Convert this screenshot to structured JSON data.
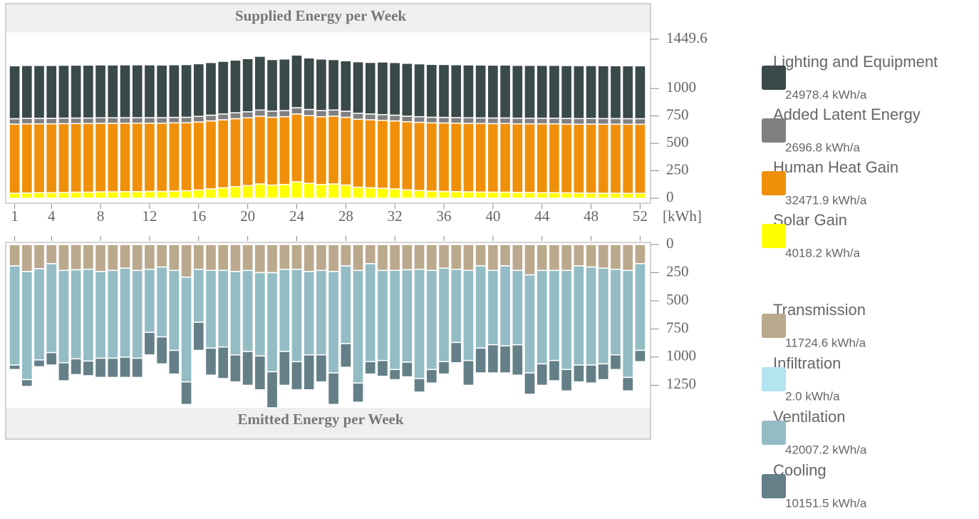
{
  "chart_data": [
    {
      "type": "bar",
      "stacked": true,
      "direction": "up",
      "title": "Supplied Energy per Week",
      "unit_label": "[kWh]",
      "x": [
        1,
        2,
        3,
        4,
        5,
        6,
        7,
        8,
        9,
        10,
        11,
        12,
        13,
        14,
        15,
        16,
        17,
        18,
        19,
        20,
        21,
        22,
        23,
        24,
        25,
        26,
        27,
        28,
        29,
        30,
        31,
        32,
        33,
        34,
        35,
        36,
        37,
        38,
        39,
        40,
        41,
        42,
        43,
        44,
        45,
        46,
        47,
        48,
        49,
        50,
        51,
        52
      ],
      "xticks": [
        1,
        4,
        8,
        12,
        16,
        20,
        24,
        28,
        32,
        36,
        40,
        44,
        48,
        52
      ],
      "ylim": [
        0,
        1449.6
      ],
      "yticks": [
        0,
        250,
        500,
        750,
        1000,
        1449.6
      ],
      "series": [
        {
          "name": "Solar Gain",
          "total": "4018.2 kWh/a",
          "color": "#ffff00",
          "values": [
            45,
            48,
            50,
            50,
            52,
            55,
            55,
            58,
            58,
            60,
            60,
            62,
            62,
            65,
            68,
            75,
            85,
            95,
            105,
            115,
            130,
            120,
            125,
            150,
            135,
            125,
            130,
            120,
            100,
            95,
            90,
            85,
            75,
            70,
            65,
            62,
            60,
            58,
            56,
            55,
            55,
            52,
            52,
            50,
            50,
            48,
            47,
            46,
            45,
            45,
            44,
            44
          ]
        },
        {
          "name": "Human Heat Gain",
          "total": "32471.9 kWh/a",
          "color": "#f0900a",
          "values": [
            630,
            630,
            628,
            628,
            628,
            626,
            626,
            625,
            625,
            624,
            624,
            622,
            622,
            622,
            620,
            620,
            620,
            620,
            620,
            618,
            618,
            618,
            618,
            618,
            618,
            618,
            618,
            618,
            620,
            620,
            620,
            620,
            622,
            622,
            622,
            624,
            624,
            624,
            625,
            625,
            626,
            626,
            626,
            628,
            628,
            628,
            628,
            630,
            630,
            630,
            630,
            630
          ]
        },
        {
          "name": "Added Latent Energy",
          "total": "2696.8 kWh/a",
          "color": "#808080",
          "values": [
            50,
            50,
            50,
            50,
            50,
            50,
            50,
            50,
            50,
            50,
            50,
            50,
            50,
            50,
            50,
            51,
            52,
            53,
            54,
            55,
            56,
            56,
            56,
            57,
            56,
            56,
            56,
            55,
            54,
            53,
            52,
            52,
            51,
            51,
            51,
            51,
            51,
            51,
            51,
            51,
            51,
            51,
            51,
            51,
            51,
            51,
            51,
            51,
            51,
            51,
            51,
            51
          ]
        },
        {
          "name": "Lighting and Equipment",
          "total": "24978.4 kWh/a",
          "color": "#3a4949",
          "values": [
            482,
            482,
            482,
            482,
            482,
            482,
            482,
            482,
            482,
            482,
            482,
            482,
            480,
            480,
            480,
            480,
            480,
            480,
            480,
            485,
            490,
            470,
            470,
            480,
            470,
            470,
            460,
            460,
            470,
            470,
            480,
            480,
            482,
            482,
            482,
            482,
            482,
            482,
            482,
            482,
            482,
            482,
            482,
            482,
            482,
            482,
            482,
            482,
            482,
            482,
            482,
            482
          ]
        }
      ]
    },
    {
      "type": "bar",
      "stacked": true,
      "direction": "down",
      "title": "Emitted Energy per Week",
      "x": [
        1,
        2,
        3,
        4,
        5,
        6,
        7,
        8,
        9,
        10,
        11,
        12,
        13,
        14,
        15,
        16,
        17,
        18,
        19,
        20,
        21,
        22,
        23,
        24,
        25,
        26,
        27,
        28,
        29,
        30,
        31,
        32,
        33,
        34,
        35,
        36,
        37,
        38,
        39,
        40,
        41,
        42,
        43,
        44,
        45,
        46,
        47,
        48,
        49,
        50,
        51,
        52
      ],
      "ylim": [
        0,
        1450
      ],
      "yticks": [
        0,
        250,
        500,
        750,
        1000,
        1250
      ],
      "series": [
        {
          "name": "Transmission",
          "total": "11724.6 kWh/a",
          "color": "#bba98e",
          "values": [
            190,
            240,
            215,
            170,
            230,
            225,
            220,
            240,
            230,
            210,
            230,
            220,
            200,
            230,
            290,
            220,
            230,
            230,
            240,
            230,
            250,
            250,
            220,
            220,
            240,
            230,
            240,
            190,
            230,
            170,
            230,
            230,
            225,
            220,
            230,
            210,
            220,
            230,
            190,
            230,
            190,
            230,
            270,
            230,
            230,
            230,
            190,
            200,
            210,
            220,
            230,
            170
          ]
        },
        {
          "name": "Infiltration",
          "total": "2.0 kWh/a",
          "color": "#b4e4f0",
          "values": [
            0.04,
            0.04,
            0.04,
            0.04,
            0.04,
            0.04,
            0.04,
            0.04,
            0.04,
            0.04,
            0.04,
            0.04,
            0.04,
            0.04,
            0.04,
            0.04,
            0.04,
            0.04,
            0.04,
            0.04,
            0.04,
            0.04,
            0.04,
            0.04,
            0.04,
            0.04,
            0.04,
            0.04,
            0.04,
            0.04,
            0.04,
            0.04,
            0.04,
            0.04,
            0.04,
            0.04,
            0.04,
            0.04,
            0.04,
            0.04,
            0.04,
            0.04,
            0.04,
            0.04,
            0.04,
            0.04,
            0.04,
            0.04,
            0.04,
            0.04,
            0.04,
            0.04
          ]
        },
        {
          "name": "Ventilation",
          "total": "42007.2 kWh/a",
          "color": "#93bcc5",
          "values": [
            880,
            960,
            810,
            790,
            820,
            790,
            815,
            770,
            780,
            790,
            780,
            560,
            620,
            710,
            930,
            470,
            690,
            680,
            740,
            720,
            740,
            880,
            730,
            820,
            740,
            750,
            900,
            690,
            1000,
            870,
            800,
            880,
            820,
            970,
            880,
            830,
            650,
            800,
            730,
            660,
            710,
            660,
            870,
            830,
            800,
            880,
            880,
            870,
            850,
            760,
            950,
            770
          ]
        },
        {
          "name": "Cooling",
          "total": "10151.5 kWh/a",
          "color": "#647f88",
          "values": [
            40,
            60,
            60,
            110,
            160,
            140,
            130,
            170,
            170,
            180,
            170,
            200,
            240,
            210,
            200,
            250,
            240,
            280,
            240,
            300,
            300,
            320,
            300,
            250,
            310,
            240,
            280,
            210,
            170,
            110,
            140,
            90,
            130,
            120,
            120,
            110,
            180,
            220,
            220,
            250,
            240,
            270,
            190,
            190,
            180,
            190,
            150,
            160,
            140,
            130,
            120,
            100
          ]
        }
      ]
    }
  ]
}
